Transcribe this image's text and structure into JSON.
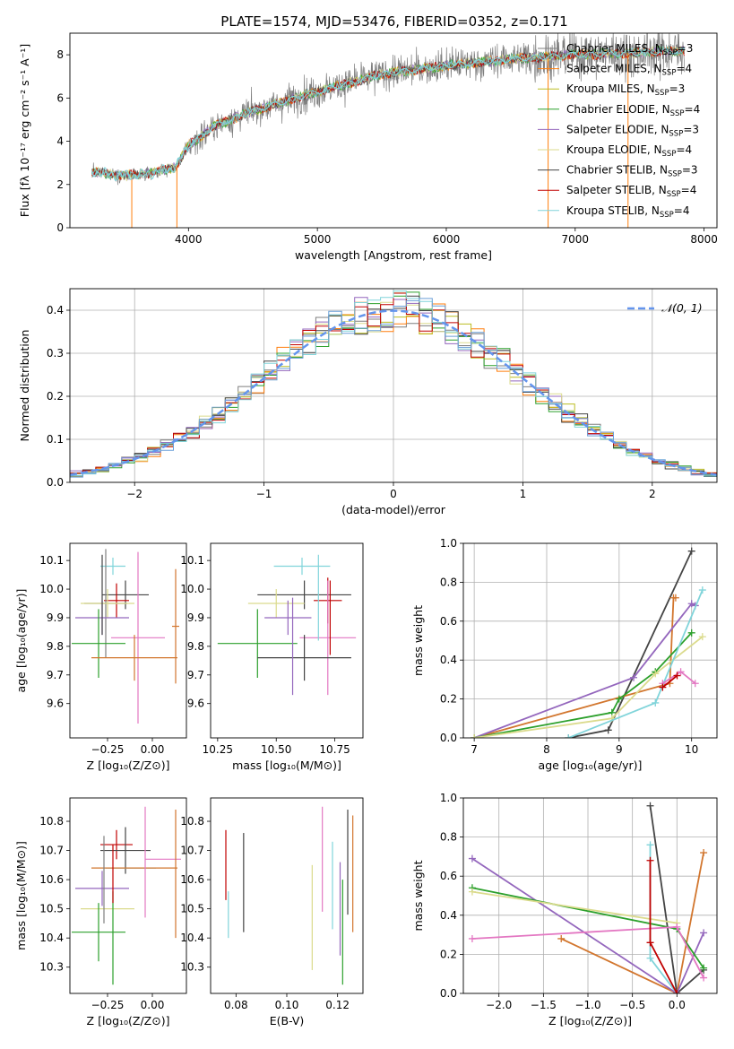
{
  "title": "PLATE=1574, MJD=53476, FIBERID=0352, z=0.171",
  "series_colors": {
    "Chabrier MILES": "#7f7f7f",
    "Salpeter MILES": "#ff7f0e",
    "Kroupa MILES": "#bcbd22",
    "Chabrier ELODIE": "#2ca02c",
    "Salpeter ELODIE": "#9467bd",
    "Kroupa ELODIE": "#dbdb8d",
    "Chabrier STELIB": "#444444",
    "Salpeter STELIB": "#c00000",
    "Kroupa STELIB": "#80d4da"
  },
  "chart_data": [
    {
      "id": "spectrum",
      "type": "line",
      "xlabel": "wavelength [Angstrom, rest frame]",
      "ylabel": "Flux [fλ 10⁻¹⁷ erg cm⁻² s⁻¹ A⁻¹]",
      "xlim": [
        3080,
        8100
      ],
      "ylim": [
        0,
        9
      ],
      "xticks": [
        4000,
        5000,
        6000,
        7000,
        8000
      ],
      "yticks": [
        0,
        2,
        4,
        6,
        8
      ],
      "legend": "upper right",
      "legend_entries": [
        {
          "text": "Chabrier MILES, N",
          "sub": "SSP",
          "suffix": "=3",
          "color": "#7f7f7f"
        },
        {
          "text": "Salpeter MILES, N",
          "sub": "SSP",
          "suffix": "=4",
          "color": "#ff7f0e"
        },
        {
          "text": "Kroupa MILES, N",
          "sub": "SSP",
          "suffix": "=3",
          "color": "#bcbd22"
        },
        {
          "text": "Chabrier ELODIE, N",
          "sub": "SSP",
          "suffix": "=4",
          "color": "#2ca02c"
        },
        {
          "text": "Salpeter ELODIE, N",
          "sub": "SSP",
          "suffix": "=3",
          "color": "#9467bd"
        },
        {
          "text": "Kroupa ELODIE, N",
          "sub": "SSP",
          "suffix": "=4",
          "color": "#dbdb8d"
        },
        {
          "text": "Chabrier STELIB, N",
          "sub": "SSP",
          "suffix": "=3",
          "color": "#444444"
        },
        {
          "text": "Salpeter STELIB, N",
          "sub": "SSP",
          "suffix": "=4",
          "color": "#c00000"
        },
        {
          "text": "Kroupa STELIB, N",
          "sub": "SSP",
          "suffix": "=4",
          "color": "#80d4da"
        }
      ],
      "continuum": [
        [
          3250,
          2.6
        ],
        [
          3500,
          2.4
        ],
        [
          3700,
          2.5
        ],
        [
          3900,
          2.8
        ],
        [
          4000,
          3.8
        ],
        [
          4200,
          4.7
        ],
        [
          4500,
          5.4
        ],
        [
          5000,
          6.3
        ],
        [
          5500,
          7.1
        ],
        [
          6000,
          7.5
        ],
        [
          6500,
          7.8
        ],
        [
          7000,
          8.0
        ],
        [
          7500,
          8.1
        ],
        [
          7850,
          8.2
        ]
      ],
      "spikes": [
        [
          3560,
          0
        ],
        [
          3910,
          0
        ],
        [
          6790,
          0
        ],
        [
          7410,
          0
        ]
      ]
    },
    {
      "id": "residuals",
      "type": "histogram",
      "xlabel": "(data-model)/error",
      "ylabel": "Normed distribution",
      "xlim": [
        -2.5,
        2.5
      ],
      "ylim": [
        0,
        0.45
      ],
      "xticks": [
        -2,
        -1,
        0,
        1,
        2
      ],
      "yticks": [
        0.0,
        0.1,
        0.2,
        0.3,
        0.4
      ],
      "grid": true,
      "legend": "upper right",
      "reference_curve": {
        "label": "𝒩(0, 1)",
        "mean": 0,
        "sigma": 1,
        "color": "#6495ed"
      }
    },
    {
      "id": "age-vs-Z",
      "type": "errorbar",
      "xlabel": "Z [log₁₀(Z/Z⊙)]",
      "ylabel": "age  [log₁₀(age/yr)]",
      "xlim": [
        -0.46,
        0.19
      ],
      "ylim": [
        9.48,
        10.16
      ],
      "xticks": [
        -0.25,
        0.0
      ],
      "yticks": [
        9.6,
        9.7,
        9.8,
        9.9,
        10.0,
        10.1
      ],
      "grid": false,
      "points": [
        {
          "x": -0.22,
          "y": 10.08,
          "xerr": 0.07,
          "yerr": 0.03,
          "color": "#80d4da"
        },
        {
          "x": -0.15,
          "y": 9.98,
          "xerr": 0.13,
          "yerr": 0.05,
          "color": "#444444"
        },
        {
          "x": -0.2,
          "y": 9.96,
          "xerr": 0.07,
          "yerr": 0.06,
          "color": "#c00000"
        },
        {
          "x": -0.26,
          "y": 9.95,
          "xerr": 0.12,
          "yerr": 0.19,
          "color": "#7f7f7f"
        },
        {
          "x": -0.25,
          "y": 9.95,
          "xerr": 0.15,
          "yerr": 0.05,
          "color": "#dbdb8d"
        },
        {
          "x": -0.28,
          "y": 9.9,
          "xerr": 0.15,
          "yerr": 0.06,
          "color": "#9467bd"
        },
        {
          "x": -0.3,
          "y": 9.81,
          "xerr": 0.15,
          "yerr": 0.12,
          "color": "#2ca02c"
        },
        {
          "x": -0.08,
          "y": 9.83,
          "xerr": 0.15,
          "yerr": 0.3,
          "color": "#e377c2"
        },
        {
          "x": -0.1,
          "y": 9.76,
          "xerr": 0.24,
          "yerr": 0.08,
          "color": "#d2762e"
        },
        {
          "x": 0.13,
          "y": 9.87,
          "xerr": 0.02,
          "yerr": 0.2,
          "color": "#d2762e"
        },
        {
          "x": -0.28,
          "y": 9.98,
          "xerr": 0.0,
          "yerr": 0.14,
          "color": "#444444"
        }
      ]
    },
    {
      "id": "age-vs-mass",
      "type": "errorbar",
      "xlabel": "mass [log₁₀(M/M⊙)]",
      "ylabel": "",
      "xlim": [
        10.22,
        10.87
      ],
      "ylim": [
        9.48,
        10.16
      ],
      "xticks": [
        10.25,
        10.5,
        10.75
      ],
      "yticks": [
        9.6,
        9.7,
        9.8,
        9.9,
        10.0,
        10.1
      ],
      "grid": false,
      "points": [
        {
          "x": 10.61,
          "y": 10.08,
          "xerr": 0.12,
          "yerr": 0.03,
          "color": "#80d4da"
        },
        {
          "x": 10.62,
          "y": 9.98,
          "xerr": 0.2,
          "yerr": 0.05,
          "color": "#444444"
        },
        {
          "x": 10.72,
          "y": 9.96,
          "xerr": 0.06,
          "yerr": 0.08,
          "color": "#c00000"
        },
        {
          "x": 10.5,
          "y": 9.95,
          "xerr": 0.12,
          "yerr": 0.05,
          "color": "#dbdb8d"
        },
        {
          "x": 10.55,
          "y": 9.9,
          "xerr": 0.1,
          "yerr": 0.06,
          "color": "#9467bd"
        },
        {
          "x": 10.42,
          "y": 9.81,
          "xerr": 0.17,
          "yerr": 0.12,
          "color": "#2ca02c"
        },
        {
          "x": 10.72,
          "y": 9.83,
          "xerr": 0.12,
          "yerr": 0.2,
          "color": "#e377c2"
        },
        {
          "x": 10.62,
          "y": 9.76,
          "xerr": 0.2,
          "yerr": 0.08,
          "color": "#444444"
        },
        {
          "x": 10.73,
          "y": 9.9,
          "xerr": 0.0,
          "yerr": 0.13,
          "color": "#c00000"
        },
        {
          "x": 10.68,
          "y": 9.97,
          "xerr": 0.0,
          "yerr": 0.15,
          "color": "#80d4da"
        },
        {
          "x": 10.57,
          "y": 9.8,
          "xerr": 0.0,
          "yerr": 0.17,
          "color": "#9467bd"
        }
      ]
    },
    {
      "id": "mass-weight-vs-age",
      "type": "line",
      "xlabel": "age  [log₁₀(age/yr)]",
      "ylabel": "mass weight",
      "xlim": [
        6.85,
        10.35
      ],
      "ylim": [
        0,
        1
      ],
      "xticks": [
        7,
        8,
        9,
        10
      ],
      "yticks": [
        0.0,
        0.2,
        0.4,
        0.6,
        0.8,
        1.0
      ],
      "grid": true,
      "series": [
        {
          "color": "#444444",
          "x": [
            8.3,
            8.85,
            10.0
          ],
          "y": [
            0.0,
            0.04,
            0.96
          ]
        },
        {
          "color": "#d2762e",
          "x": [
            7.0,
            9.7,
            9.75,
            9.78
          ],
          "y": [
            0.0,
            0.28,
            0.72,
            0.72
          ]
        },
        {
          "color": "#9467bd",
          "x": [
            7.0,
            9.2,
            10.0,
            10.05
          ],
          "y": [
            0.0,
            0.31,
            0.69,
            0.68
          ]
        },
        {
          "color": "#2ca02c",
          "x": [
            7.0,
            8.9,
            9.0,
            9.5,
            10.0
          ],
          "y": [
            0.0,
            0.13,
            0.2,
            0.34,
            0.54
          ]
        },
        {
          "color": "#dbdb8d",
          "x": [
            7.0,
            8.9,
            9.5,
            10.15
          ],
          "y": [
            0.0,
            0.1,
            0.33,
            0.52
          ]
        },
        {
          "color": "#80d4da",
          "x": [
            8.3,
            9.5,
            10.15
          ],
          "y": [
            0.0,
            0.18,
            0.76
          ]
        },
        {
          "color": "#e377c2",
          "x": [
            9.6,
            9.85,
            10.05
          ],
          "y": [
            0.28,
            0.34,
            0.28
          ]
        },
        {
          "color": "#c00000",
          "x": [
            9.6,
            9.8
          ],
          "y": [
            0.26,
            0.32
          ]
        }
      ]
    },
    {
      "id": "mass-vs-Z",
      "type": "errorbar",
      "xlabel": "Z [log₁₀(Z/Z⊙)]",
      "ylabel": "mass [log₁₀(M/M⊙)]",
      "xlim": [
        -0.46,
        0.19
      ],
      "ylim": [
        10.21,
        10.88
      ],
      "xticks": [
        -0.25,
        0.0
      ],
      "yticks": [
        10.3,
        10.4,
        10.5,
        10.6,
        10.7,
        10.8
      ],
      "grid": false,
      "points": [
        {
          "x": -0.2,
          "y": 10.72,
          "xerr": 0.09,
          "yerr": 0.05,
          "color": "#c00000"
        },
        {
          "x": -0.15,
          "y": 10.7,
          "xerr": 0.14,
          "yerr": 0.08,
          "color": "#444444"
        },
        {
          "x": 0.06,
          "y": 10.67,
          "xerr": 0.1,
          "yerr": 0.0,
          "color": "#e377c2"
        },
        {
          "x": -0.12,
          "y": 10.64,
          "xerr": 0.14,
          "yerr": 0.0,
          "color": "#80d4da"
        },
        {
          "x": -0.1,
          "y": 10.64,
          "xerr": 0.24,
          "yerr": 0.0,
          "color": "#d2762e"
        },
        {
          "x": -0.28,
          "y": 10.57,
          "xerr": 0.15,
          "yerr": 0.06,
          "color": "#9467bd"
        },
        {
          "x": -0.25,
          "y": 10.5,
          "xerr": 0.15,
          "yerr": 0.0,
          "color": "#dbdb8d"
        },
        {
          "x": -0.3,
          "y": 10.42,
          "xerr": 0.15,
          "yerr": 0.1,
          "color": "#2ca02c"
        },
        {
          "x": -0.04,
          "y": 10.66,
          "xerr": 0.0,
          "yerr": 0.19,
          "color": "#e377c2"
        },
        {
          "x": 0.13,
          "y": 10.62,
          "xerr": 0.0,
          "yerr": 0.22,
          "color": "#d2762e"
        },
        {
          "x": -0.22,
          "y": 10.4,
          "xerr": 0.0,
          "yerr": 0.16,
          "color": "#2ca02c"
        },
        {
          "x": -0.27,
          "y": 10.6,
          "xerr": 0.0,
          "yerr": 0.15,
          "color": "#7f7f7f"
        },
        {
          "x": -0.22,
          "y": 10.62,
          "xerr": 0.0,
          "yerr": 0.1,
          "color": "#c00000"
        }
      ]
    },
    {
      "id": "mass-vs-EBV",
      "type": "errorbar",
      "xlabel": "E(B-V)",
      "ylabel": "",
      "xlim": [
        0.07,
        0.13
      ],
      "ylim": [
        10.21,
        10.88
      ],
      "xticks": [
        0.08,
        0.1,
        0.12
      ],
      "yticks": [
        10.3,
        10.4,
        10.5,
        10.6,
        10.7,
        10.8
      ],
      "grid": false,
      "points": [
        {
          "x": 0.076,
          "y": 10.65,
          "xerr": 0.0,
          "yerr": 0.12,
          "color": "#c00000"
        },
        {
          "x": 0.077,
          "y": 10.48,
          "xerr": 0.0,
          "yerr": 0.08,
          "color": "#80d4da"
        },
        {
          "x": 0.083,
          "y": 10.59,
          "xerr": 0.0,
          "yerr": 0.17,
          "color": "#444444"
        },
        {
          "x": 0.11,
          "y": 10.47,
          "xerr": 0.0,
          "yerr": 0.18,
          "color": "#dbdb8d"
        },
        {
          "x": 0.114,
          "y": 10.67,
          "xerr": 0.0,
          "yerr": 0.18,
          "color": "#e377c2"
        },
        {
          "x": 0.118,
          "y": 10.58,
          "xerr": 0.0,
          "yerr": 0.15,
          "color": "#80d4da"
        },
        {
          "x": 0.121,
          "y": 10.5,
          "xerr": 0.0,
          "yerr": 0.16,
          "color": "#9467bd"
        },
        {
          "x": 0.122,
          "y": 10.42,
          "xerr": 0.0,
          "yerr": 0.18,
          "color": "#2ca02c"
        },
        {
          "x": 0.124,
          "y": 10.66,
          "xerr": 0.0,
          "yerr": 0.18,
          "color": "#444444"
        },
        {
          "x": 0.126,
          "y": 10.62,
          "xerr": 0.0,
          "yerr": 0.2,
          "color": "#d2762e"
        }
      ]
    },
    {
      "id": "mass-weight-vs-Z",
      "type": "line",
      "xlabel": "Z [log₁₀(Z/Z⊙)]",
      "ylabel": "mass weight",
      "xlim": [
        -2.4,
        0.45
      ],
      "ylim": [
        0,
        1
      ],
      "xticks": [
        -2.0,
        -1.5,
        -1.0,
        -0.5,
        0.0
      ],
      "yticks": [
        0.0,
        0.2,
        0.4,
        0.6,
        0.8,
        1.0
      ],
      "grid": true,
      "series": [
        {
          "color": "#444444",
          "x": [
            -0.3,
            0.0,
            0.3
          ],
          "y": [
            0.96,
            0.0,
            0.12
          ]
        },
        {
          "color": "#d2762e",
          "x": [
            -1.3,
            0.0,
            0.3
          ],
          "y": [
            0.28,
            0.0,
            0.72
          ]
        },
        {
          "color": "#9467bd",
          "x": [
            -2.3,
            0.0,
            0.3
          ],
          "y": [
            0.69,
            0.0,
            0.31
          ]
        },
        {
          "color": "#2ca02c",
          "x": [
            -2.3,
            0.0,
            0.3
          ],
          "y": [
            0.54,
            0.33,
            0.13
          ]
        },
        {
          "color": "#dbdb8d",
          "x": [
            -2.3,
            0.0
          ],
          "y": [
            0.52,
            0.36
          ]
        },
        {
          "color": "#80d4da",
          "x": [
            -0.3,
            -0.3,
            0.0
          ],
          "y": [
            0.76,
            0.18,
            0.0
          ]
        },
        {
          "color": "#e377c2",
          "x": [
            -2.3,
            0.0,
            0.3
          ],
          "y": [
            0.28,
            0.34,
            0.08
          ]
        },
        {
          "color": "#c00000",
          "x": [
            -0.3,
            -0.3,
            0.0
          ],
          "y": [
            0.68,
            0.26,
            0.0
          ]
        }
      ]
    }
  ]
}
